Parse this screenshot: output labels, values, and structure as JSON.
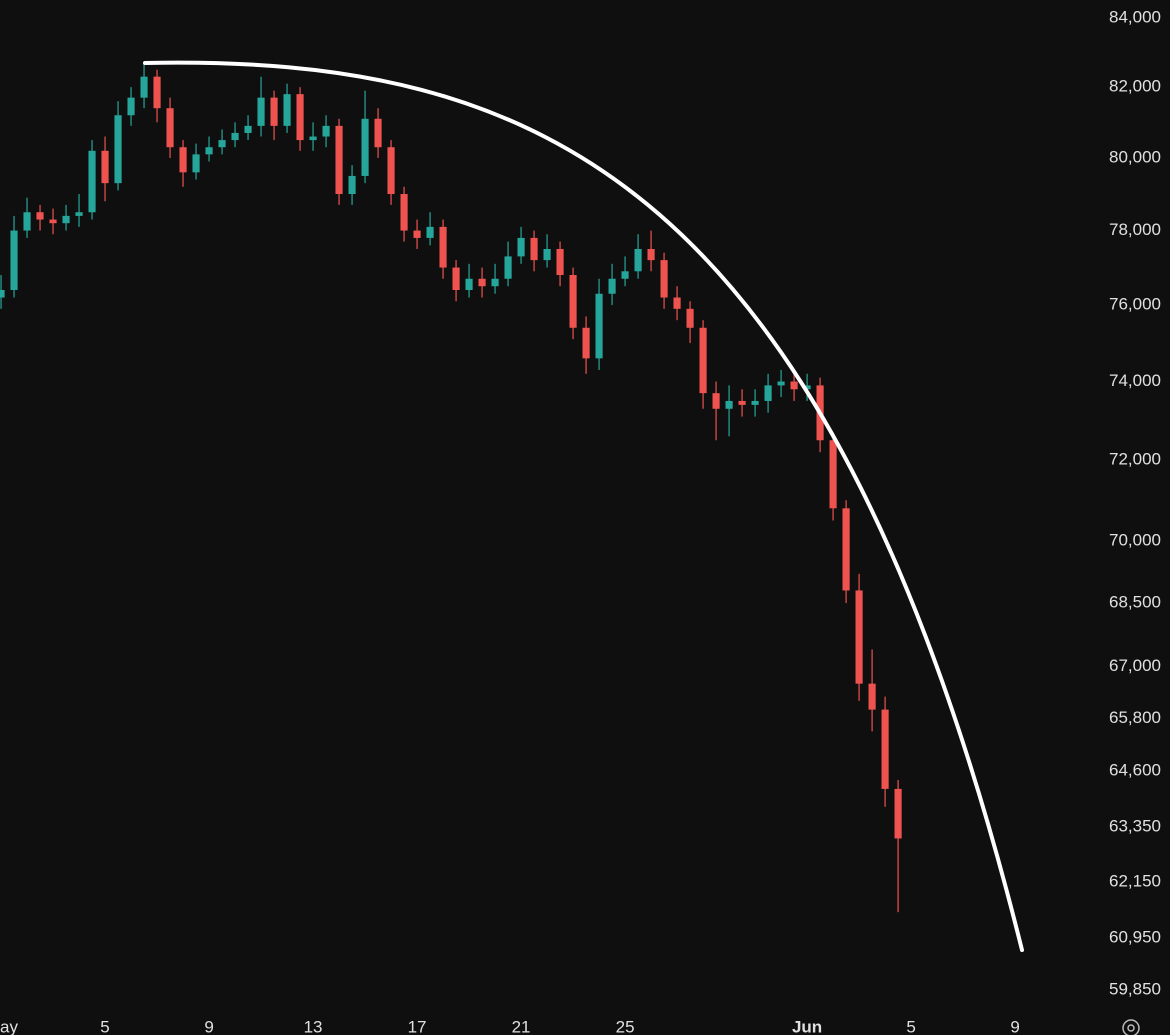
{
  "chart_data": {
    "type": "candlestick",
    "log_scale": true,
    "up_color": "#26a69a",
    "down_color": "#ef5350",
    "xlim": [
      0.96,
      43.65
    ],
    "ylim": [
      59540,
      84530
    ],
    "xticks": [
      {
        "value": 1,
        "label": "ay"
      },
      5,
      9,
      13,
      17,
      21,
      25,
      {
        "value": 32,
        "label": "Jun"
      },
      {
        "value": 36,
        "label": "5"
      },
      {
        "value": 40,
        "label": "9"
      }
    ],
    "yticks": [
      {
        "value": 84000,
        "label": "84,000"
      },
      {
        "value": 82000,
        "label": "82,000"
      },
      {
        "value": 80000,
        "label": "80,000"
      },
      {
        "value": 78000,
        "label": "78,000"
      },
      {
        "value": 76000,
        "label": "76,000"
      },
      {
        "value": 74000,
        "label": "74,000"
      },
      {
        "value": 72000,
        "label": "72,000"
      },
      {
        "value": 70000,
        "label": "70,000"
      },
      {
        "value": 68500,
        "label": "68,500"
      },
      {
        "value": 67000,
        "label": "67,000"
      },
      {
        "value": 65800,
        "label": "65,800"
      },
      {
        "value": 64600,
        "label": "64,600"
      },
      {
        "value": 63350,
        "label": "63,350"
      },
      {
        "value": 62150,
        "label": "62,150"
      },
      {
        "value": 60950,
        "label": "60,950"
      },
      {
        "value": 59850,
        "label": "59,850"
      }
    ],
    "x": [
      1,
      1.5,
      2,
      2.5,
      3,
      3.5,
      4,
      4.5,
      5,
      5.5,
      6,
      6.5,
      7,
      7.5,
      8,
      8.5,
      9,
      9.5,
      10,
      10.5,
      11,
      11.5,
      12,
      12.5,
      13,
      13.5,
      14,
      14.5,
      15,
      15.5,
      16,
      16.5,
      17,
      17.5,
      18,
      18.5,
      19,
      19.5,
      20,
      20.5,
      21,
      21.5,
      22,
      22.5,
      23,
      23.5,
      24,
      24.5,
      25,
      25.5,
      26,
      26.5,
      27,
      27.5,
      28,
      28.5,
      29,
      29.5,
      30,
      30.5,
      31,
      31.5,
      32,
      32.5,
      33,
      33.5,
      34,
      34.5,
      35,
      35.5
    ],
    "open": [
      76200,
      76400,
      78000,
      78500,
      78300,
      78200,
      78400,
      78500,
      80200,
      79300,
      81200,
      81700,
      82300,
      81400,
      80300,
      79600,
      80100,
      80300,
      80500,
      80700,
      80900,
      81700,
      80900,
      81800,
      80500,
      80600,
      80900,
      79000,
      79500,
      81100,
      80300,
      79000,
      78000,
      77800,
      78100,
      77000,
      76400,
      76700,
      76500,
      76700,
      77300,
      77800,
      77200,
      77500,
      76800,
      75400,
      74600,
      76300,
      76700,
      76900,
      77500,
      77200,
      76200,
      75900,
      75400,
      73700,
      73300,
      73500,
      73400,
      73500,
      73900,
      74000,
      73800,
      73900,
      72500,
      70800,
      68800,
      66600,
      66000,
      64200
    ],
    "high": [
      76800,
      78400,
      78900,
      78700,
      78600,
      78700,
      79000,
      80500,
      80600,
      81600,
      82000,
      82700,
      82500,
      81700,
      80500,
      80400,
      80600,
      80800,
      81000,
      81200,
      82300,
      81900,
      82100,
      82000,
      81000,
      81200,
      81100,
      79800,
      81900,
      81400,
      80500,
      79200,
      78300,
      78500,
      78300,
      77200,
      77100,
      77000,
      77100,
      77700,
      78100,
      78000,
      77900,
      77700,
      77000,
      75700,
      76700,
      77100,
      77300,
      77900,
      78000,
      77400,
      76500,
      76100,
      75600,
      74000,
      73900,
      73800,
      73800,
      74200,
      74300,
      74200,
      74200,
      74100,
      72700,
      71000,
      69200,
      67400,
      66300,
      64400
    ],
    "low": [
      75900,
      76200,
      77800,
      78000,
      77900,
      78000,
      78100,
      78300,
      78800,
      79100,
      80900,
      81400,
      81000,
      80000,
      79200,
      79400,
      79900,
      80100,
      80300,
      80500,
      80600,
      80500,
      80700,
      80200,
      80200,
      80300,
      78700,
      78700,
      79300,
      80000,
      78700,
      77700,
      77500,
      77600,
      76700,
      76100,
      76200,
      76200,
      76300,
      76500,
      77100,
      76900,
      77000,
      76500,
      75100,
      74200,
      74300,
      76000,
      76500,
      76700,
      76900,
      75900,
      75600,
      75000,
      73300,
      72500,
      72600,
      73100,
      73100,
      73200,
      73600,
      73500,
      73500,
      72200,
      70500,
      68500,
      66200,
      65500,
      63800,
      61500
    ],
    "close": [
      76400,
      78000,
      78500,
      78300,
      78200,
      78400,
      78500,
      80200,
      79300,
      81200,
      81700,
      82300,
      81400,
      80300,
      79600,
      80100,
      80300,
      80500,
      80700,
      80900,
      81700,
      80900,
      81800,
      80500,
      80600,
      80900,
      79000,
      79500,
      81100,
      80300,
      79000,
      78000,
      77800,
      78100,
      77000,
      76400,
      76700,
      76500,
      76700,
      77300,
      77800,
      77200,
      77500,
      76800,
      75400,
      74600,
      76300,
      76700,
      76900,
      77500,
      77200,
      76200,
      75900,
      75400,
      73700,
      73300,
      73500,
      73400,
      73500,
      73900,
      74000,
      73800,
      73900,
      72500,
      70800,
      68800,
      66600,
      66000,
      64200,
      63100
    ]
  }
}
